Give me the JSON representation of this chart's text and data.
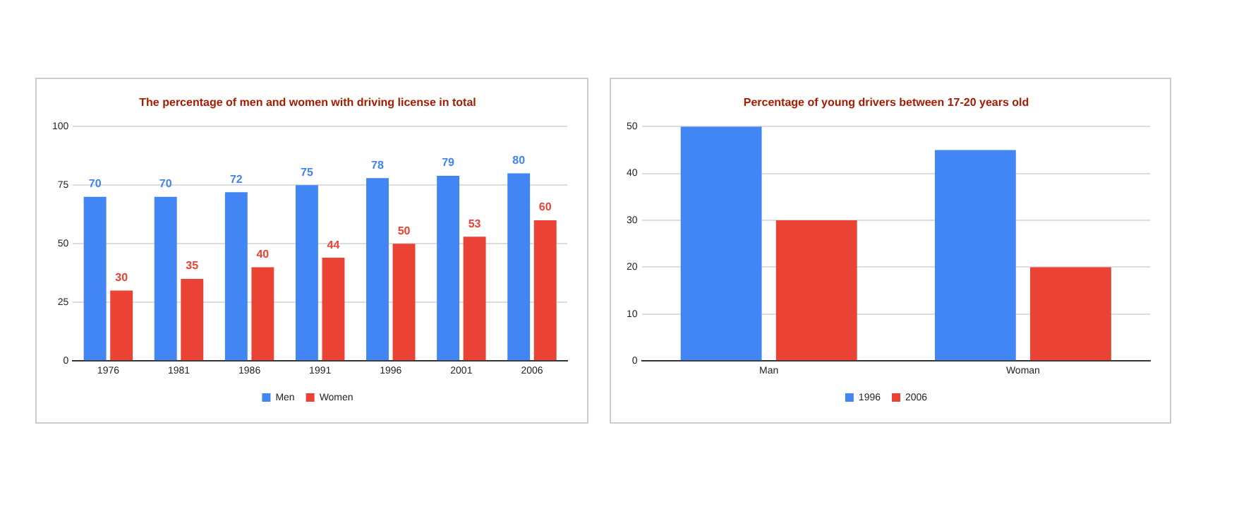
{
  "chart_data": [
    {
      "type": "bar",
      "title": "The percentage of men and women with driving license in total",
      "categories": [
        "1976",
        "1981",
        "1986",
        "1991",
        "1996",
        "2001",
        "2006"
      ],
      "series": [
        {
          "name": "Men",
          "color": "#4285f4",
          "values": [
            70,
            70,
            72,
            75,
            78,
            79,
            80
          ]
        },
        {
          "name": "Women",
          "color": "#ea4335",
          "values": [
            30,
            35,
            40,
            44,
            50,
            53,
            60
          ]
        }
      ],
      "ylim": [
        0,
        100
      ],
      "yticks": [
        0,
        25,
        50,
        75,
        100
      ],
      "grid": "y",
      "legend": "bottom",
      "data_labels": true
    },
    {
      "type": "bar",
      "title": "Percentage of young drivers between 17-20 years old",
      "categories": [
        "Man",
        "Woman"
      ],
      "series": [
        {
          "name": "1996",
          "color": "#4285f4",
          "values": [
            50,
            45
          ]
        },
        {
          "name": "2006",
          "color": "#ea4335",
          "values": [
            30,
            20
          ]
        }
      ],
      "ylim": [
        0,
        50
      ],
      "yticks": [
        0,
        10,
        20,
        30,
        40,
        50
      ],
      "grid": "y",
      "legend": "bottom"
    }
  ]
}
